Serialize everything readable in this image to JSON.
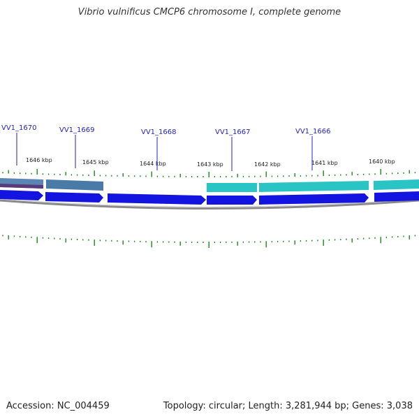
{
  "title": "Vibrio vulnificus CMCP6 chromosome I, complete genome",
  "accession": "Accession: NC_004459",
  "summary": "Topology: circular; Length: 3,281,944 bp; Genes: 3,038",
  "kbp_labels": [
    "1646 kbp",
    "1645 kbp",
    "1644 kbp",
    "1643 kbp",
    "1642 kbp",
    "1641 kbp",
    "1640 kbp"
  ],
  "gene_labels": [
    "VV1_1670",
    "VV1_1669",
    "VV1_1668",
    "VV1_1667",
    "VV1_1666"
  ],
  "colors": {
    "blue_gene": "#1414e0",
    "steel_gene": "#4a7aa8",
    "cyan_gene": "#2bc4c4",
    "purple_gene": "#5a3a7a",
    "tick": "#1a8a1a",
    "label": "#1f1fc8",
    "backbone": "#8a8a8a"
  }
}
